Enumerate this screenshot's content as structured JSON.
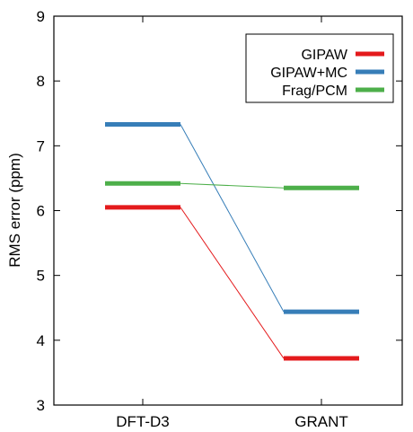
{
  "chart_data": {
    "type": "line",
    "categories": [
      "DFT-D3",
      "GRANT"
    ],
    "ylabel": "RMS error (ppm)",
    "xlabel": "",
    "title": "",
    "ylim": [
      3,
      9
    ],
    "yticks": [
      "3",
      "4",
      "5",
      "6",
      "7",
      "8",
      "9"
    ],
    "grid": false,
    "legend_position": "top-right",
    "series": [
      {
        "name": "GIPAW",
        "values": [
          6.05,
          3.72
        ],
        "color": "#e41a1c"
      },
      {
        "name": "GIPAW+MC",
        "values": [
          7.33,
          4.44
        ],
        "color": "#377eb8"
      },
      {
        "name": "Frag/PCM",
        "values": [
          6.42,
          6.35
        ],
        "color": "#4daf4a"
      }
    ]
  }
}
